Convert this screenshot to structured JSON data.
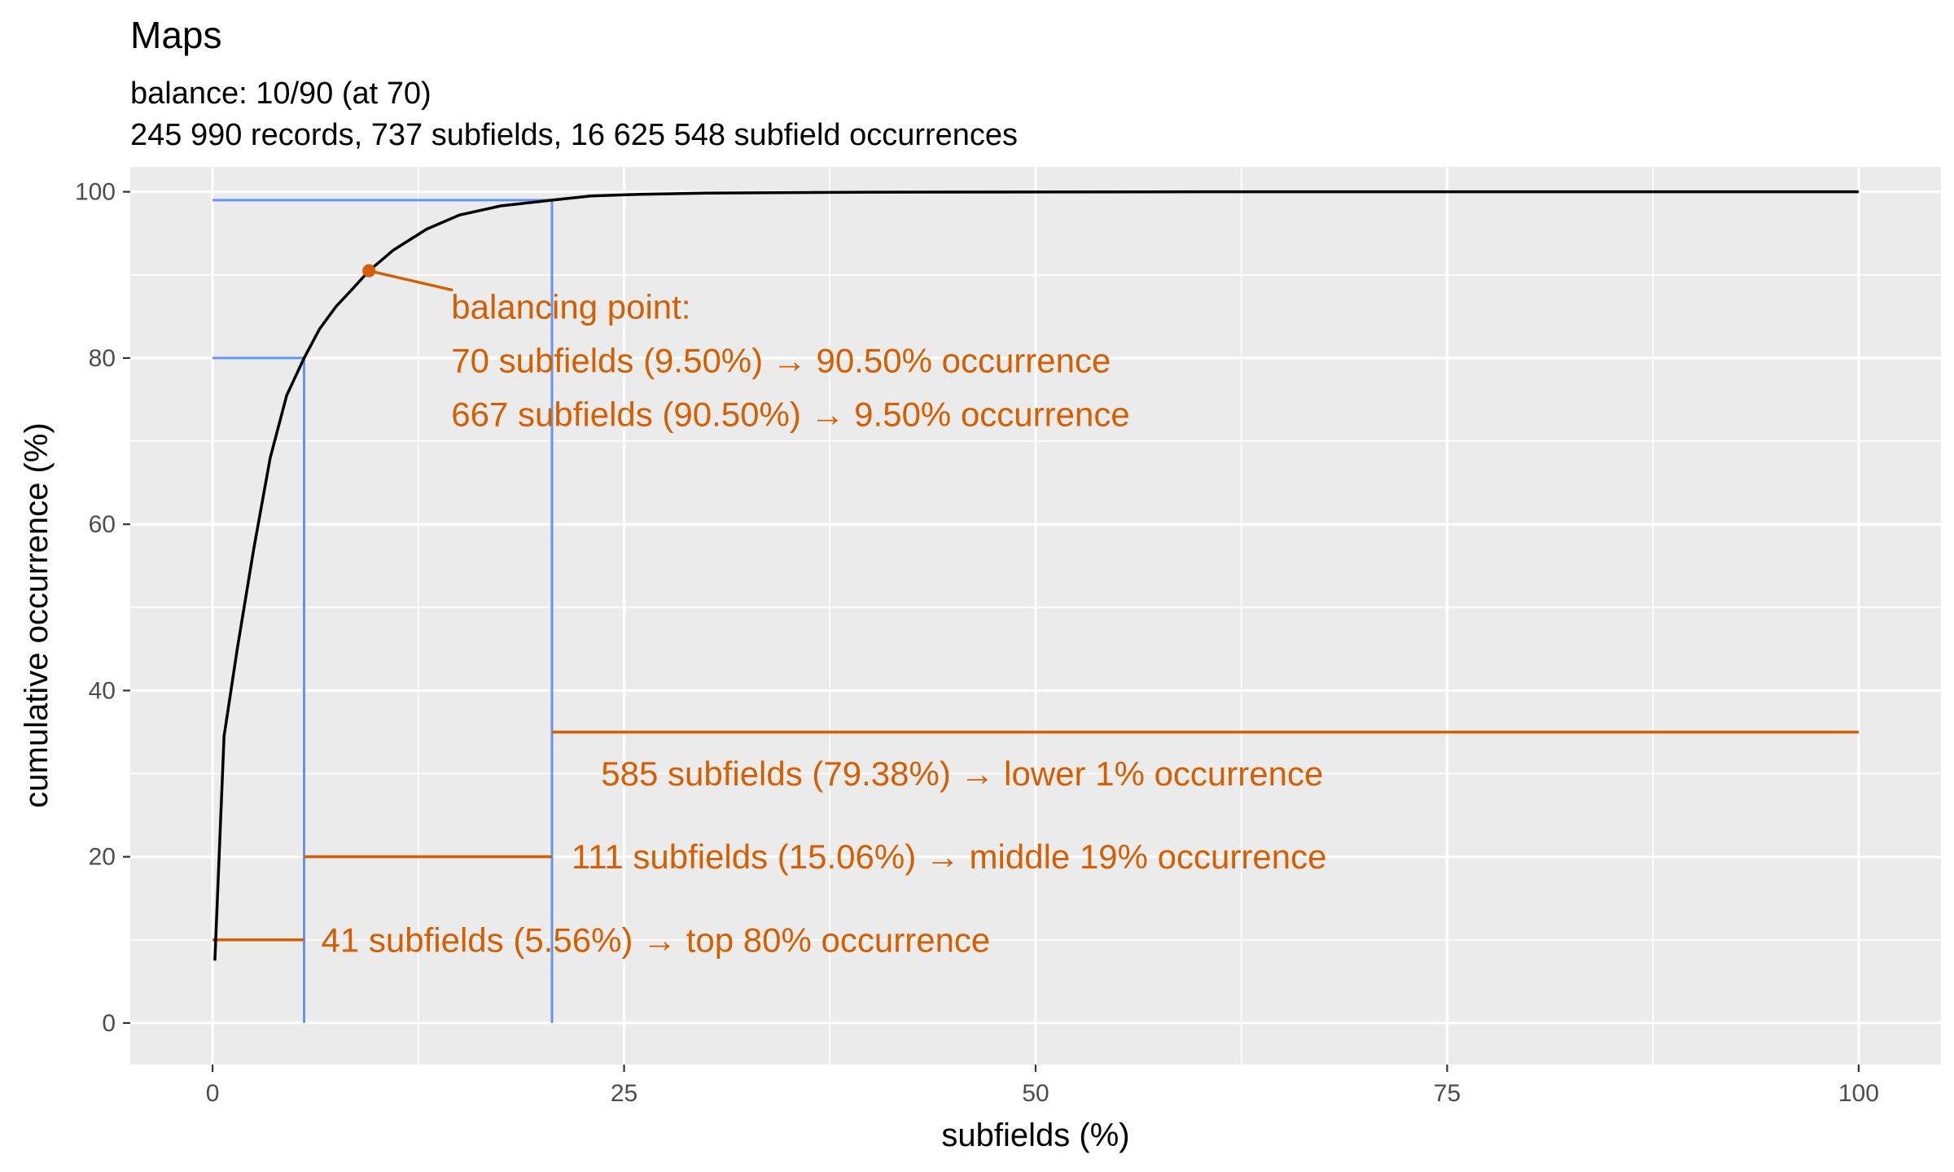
{
  "chart_data": {
    "type": "line",
    "title": "Maps",
    "subtitle_lines": [
      "balance: 10/90 (at 70)",
      "245 990 records, 737 subfields, 16 625 548 subfield occurrences"
    ],
    "xlabel": "subfields (%)",
    "ylabel": "cumulative occurrence (%)",
    "xlim": [
      -5,
      105
    ],
    "ylim": [
      -5,
      103
    ],
    "x_ticks": [
      0,
      25,
      50,
      75,
      100
    ],
    "y_ticks": [
      0,
      20,
      40,
      60,
      80,
      100
    ],
    "x_minor_gridlines": [
      12.5,
      37.5,
      62.5,
      87.5
    ],
    "y_minor_gridlines": [
      10,
      30,
      50,
      70,
      90
    ],
    "grid": true,
    "colors": {
      "panel_background": "#ebebeb",
      "gridline": "#ffffff",
      "curve": "#000000",
      "threshold_lines": "#6495ed",
      "annotation": "#d55e00"
    },
    "series": [
      {
        "x": [
          0.14,
          0.7,
          1.5,
          2.5,
          3.5,
          4.5,
          5.56,
          6.5,
          7.5,
          8.5,
          9.5,
          11,
          13,
          15,
          17.5,
          20.62,
          23,
          26,
          30,
          40,
          60,
          80,
          100
        ],
        "values": [
          7.5,
          34.5,
          45,
          57,
          68,
          75.5,
          80,
          83.5,
          86.2,
          88.3,
          90.5,
          93,
          95.5,
          97.2,
          98.3,
          99,
          99.5,
          99.7,
          99.85,
          99.95,
          100,
          100,
          100
        ]
      }
    ],
    "threshold_lines": [
      {
        "x": 5.56,
        "y": 80
      },
      {
        "x": 20.62,
        "y": 99
      }
    ],
    "balancing_point": {
      "x": 9.5,
      "y": 90.5,
      "label_anchor": {
        "x": 14.5,
        "y": 86.2
      },
      "lines": [
        "balancing point:",
        "70 subfields (9.50%) → 90.50% occurrence",
        "667 subfields (90.50%) → 9.50% occurrence"
      ]
    },
    "segments": [
      {
        "x_start": 0,
        "x_end": 5.56,
        "y": 10,
        "label_x": 6.6,
        "label": "41 subfields (5.56%) → top 80% occurrence"
      },
      {
        "x_start": 5.56,
        "x_end": 20.62,
        "y": 20,
        "label_x": 21.8,
        "label": "111 subfields (15.06%) → middle 19% occurrence"
      },
      {
        "x_start": 20.62,
        "x_end": 100,
        "y": 35,
        "label_x": 23.6,
        "label_y": 30,
        "label": "585 subfields (79.38%) → lower 1% occurrence"
      }
    ]
  }
}
